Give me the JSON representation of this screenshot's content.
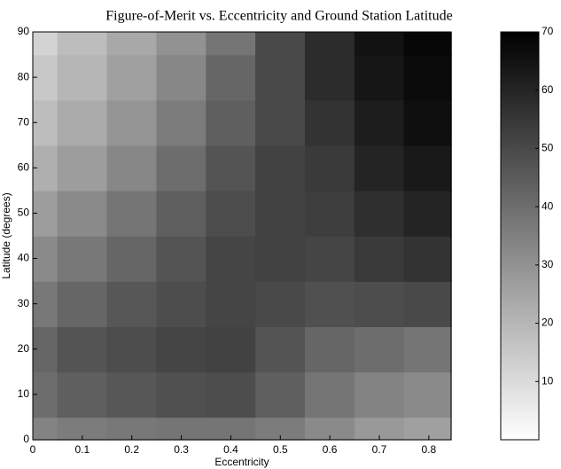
{
  "chart_data": {
    "type": "heatmap",
    "title": "Figure-of-Merit vs. Eccentricity and Ground Station Latitude",
    "x_label": "Eccentricity",
    "y_label": "Latitude (degrees)",
    "x": [
      0,
      0.1,
      0.2,
      0.3,
      0.4,
      0.5,
      0.6,
      0.7,
      0.8
    ],
    "y": [
      0,
      10,
      20,
      30,
      40,
      50,
      60,
      70,
      80,
      90
    ],
    "z": [
      [
        34,
        36,
        37,
        38,
        38,
        36,
        32,
        28,
        26
      ],
      [
        40,
        44,
        46,
        48,
        49,
        44,
        38,
        34,
        32
      ],
      [
        42,
        47,
        49,
        51,
        52,
        47,
        42,
        40,
        38
      ],
      [
        37,
        42,
        46,
        49,
        51,
        50,
        48,
        49,
        50
      ],
      [
        32,
        37,
        42,
        47,
        51,
        52,
        51,
        54,
        56
      ],
      [
        27,
        32,
        38,
        44,
        49,
        52,
        53,
        57,
        60
      ],
      [
        22,
        27,
        33,
        40,
        47,
        52,
        54,
        60,
        63
      ],
      [
        18,
        23,
        29,
        36,
        44,
        50,
        56,
        62,
        66
      ],
      [
        15,
        20,
        26,
        33,
        42,
        50,
        58,
        64,
        67
      ],
      [
        12,
        18,
        24,
        30,
        38,
        50,
        58,
        65,
        68
      ]
    ],
    "xlim": [
      0,
      0.845
    ],
    "xticks": [
      0,
      0.1,
      0.2,
      0.3,
      0.4,
      0.5,
      0.6,
      0.7,
      0.8
    ],
    "ylim": [
      0,
      90
    ],
    "yticks": [
      0,
      10,
      20,
      30,
      40,
      50,
      60,
      70,
      80,
      90
    ],
    "colormap": "gray-reversed",
    "clim": [
      0,
      70
    ],
    "colorbar_ticks": [
      10,
      20,
      30,
      40,
      50,
      60,
      70
    ]
  }
}
